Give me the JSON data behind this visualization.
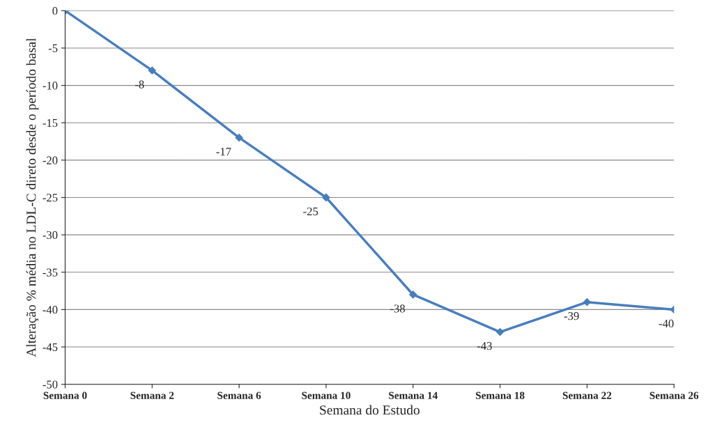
{
  "chart_data": {
    "type": "line",
    "xlabel": "Semana do Estudo",
    "ylabel": "Alteração % média no LDL-C direto desde o período basal",
    "categories": [
      "Semana 0",
      "Semana 2",
      "Semana 6",
      "Semana 10",
      "Semana 14",
      "Semana 18",
      "Semana 22",
      "Semana 26"
    ],
    "series": [
      {
        "color": "#4a7ebb",
        "values": [
          0,
          -8,
          -17,
          -25,
          -38,
          -43,
          -39,
          -40
        ]
      }
    ],
    "value_labels": [
      null,
      "-8",
      "-17",
      "-25",
      "-38",
      "-43",
      "-39",
      "-40"
    ],
    "ylim": [
      -50,
      0
    ],
    "yticks": [
      -50,
      -45,
      -40,
      -35,
      -30,
      -25,
      -20,
      -15,
      -10,
      -5,
      0
    ],
    "grid": "y",
    "marker": "diamond",
    "line_style": "solid",
    "legend": false
  }
}
